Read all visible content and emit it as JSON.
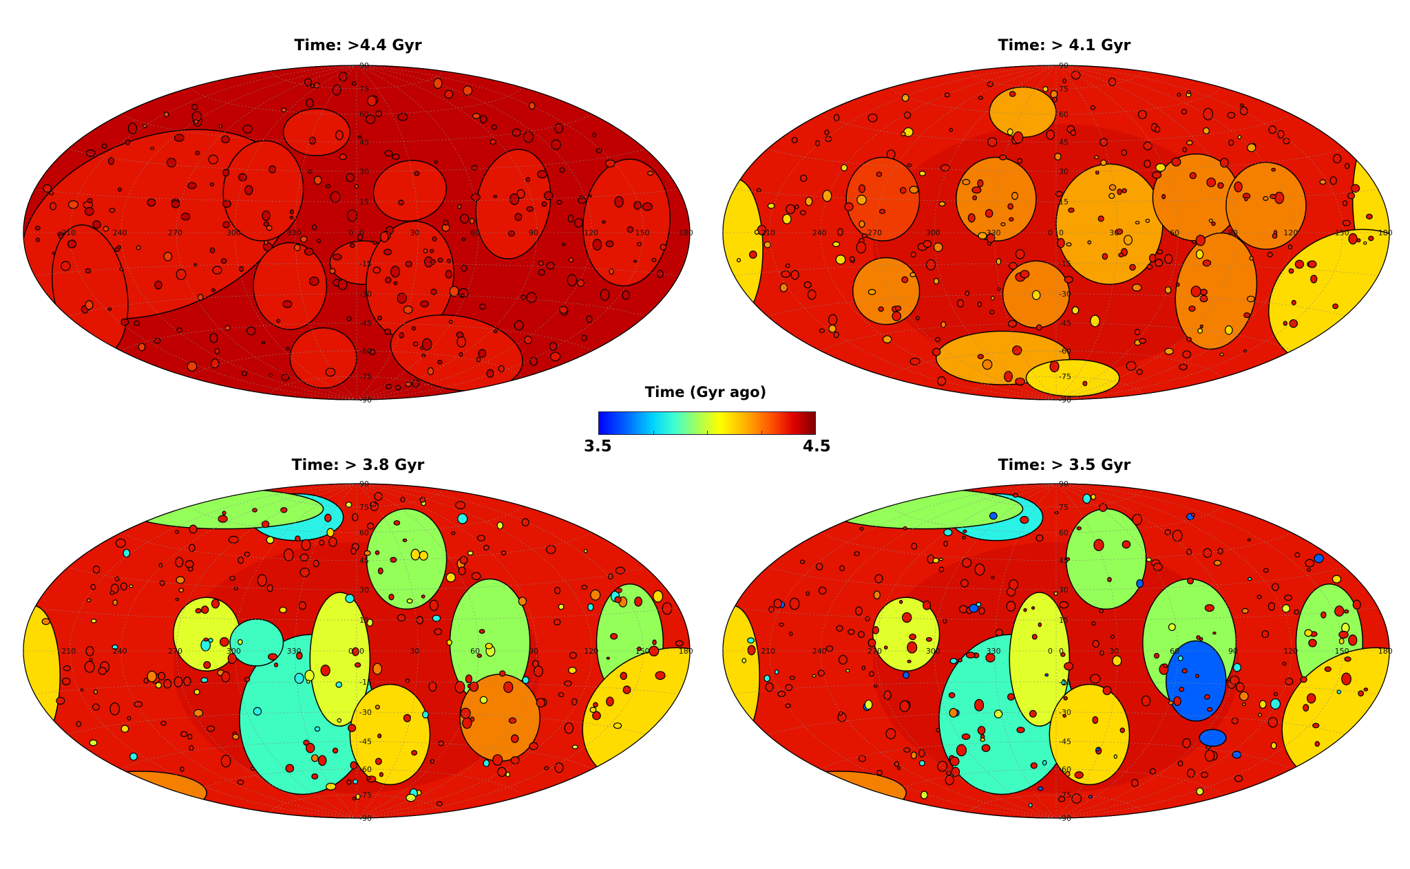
{
  "colorbar": {
    "title": "Time (Gyr ago)",
    "min_label": "3.5",
    "max_label": "4.5",
    "range": [
      3.5,
      4.5
    ],
    "colors": [
      "#0000ff",
      "#00d4ff",
      "#40ffd0",
      "#a0ff60",
      "#ffff00",
      "#ffb000",
      "#ff5000",
      "#e00000",
      "#800000"
    ]
  },
  "panels": [
    {
      "title": "Time: >4.4 Gyr"
    },
    {
      "title": "Time: > 4.1 Gyr"
    },
    {
      "title": "Time: > 3.8 Gyr"
    },
    {
      "title": "Time: > 3.5 Gyr"
    }
  ],
  "graticule": {
    "lat_labels": [
      "90",
      "75",
      "60",
      "45",
      "30",
      "15",
      "0",
      "-15",
      "-30",
      "-45",
      "-60",
      "-75",
      "-90"
    ],
    "lon_labels": [
      "210",
      "240",
      "270",
      "300",
      "330",
      "0",
      "30",
      "60",
      "90",
      "120",
      "150",
      "180"
    ],
    "projection": "Hammer-Aitoff",
    "lat_lines_deg": [
      75,
      60,
      45,
      30,
      15,
      0,
      -15,
      -30,
      -45,
      -60,
      -75
    ],
    "lon_lines_deg": [
      -150,
      -120,
      -90,
      -60,
      -30,
      0,
      30,
      60,
      90,
      120,
      150
    ]
  },
  "region_colors": {
    "deep_red": "#c00000",
    "red": "#e31500",
    "orange_red": "#f03c00",
    "orange": "#f58000",
    "light_orange": "#faa200",
    "yellow": "#ffdc00",
    "yellow_green": "#e1ff2a",
    "green": "#95ff5a",
    "cyan_green": "#3ffcc0",
    "cyan": "#2af2e6",
    "blue": "#0060ff"
  }
}
